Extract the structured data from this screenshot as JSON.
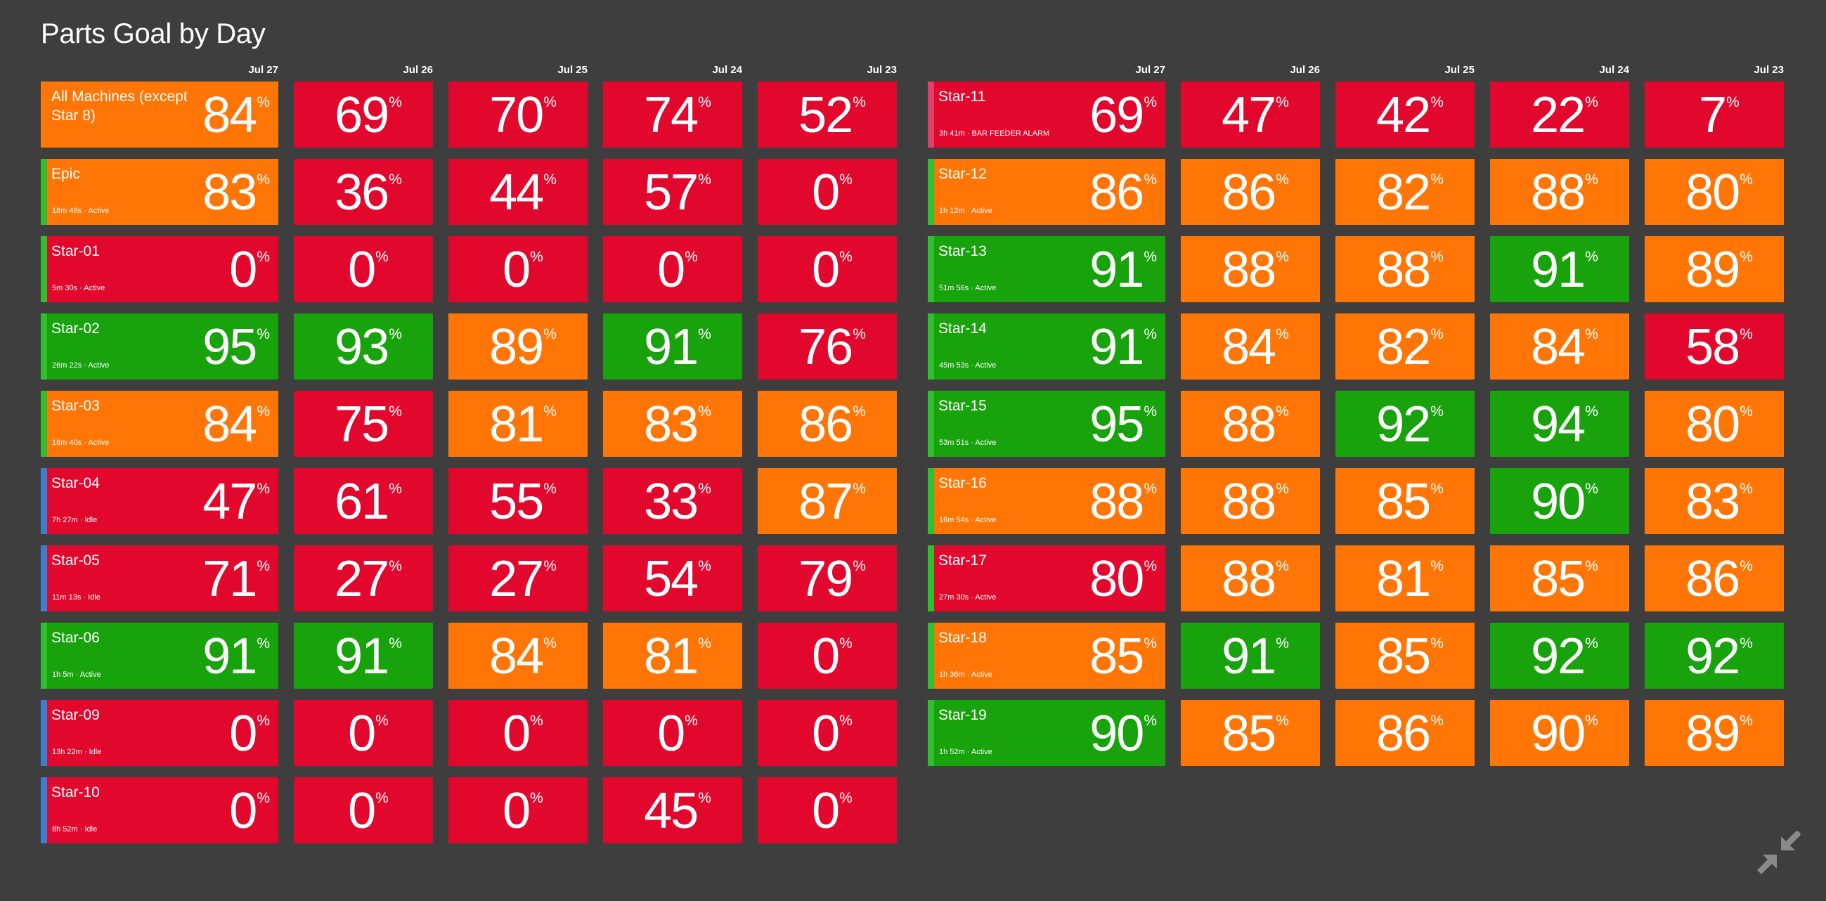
{
  "title": "Parts Goal by Day",
  "colors": {
    "background": "#3e3e3e",
    "red": "#e2082d",
    "orange": "#ff7606",
    "green": "#18a20c",
    "status_active": "#2fbf2f",
    "status_idle": "#3a7fd0",
    "status_alarm": "#e2426a",
    "status_aggregate": "#ff7606"
  },
  "percent_symbol": "%",
  "dates": [
    "Jul 27",
    "Jul 26",
    "Jul 25",
    "Jul 24",
    "Jul 23"
  ],
  "left_panel": [
    {
      "name": "All Machines (except Star 8)",
      "status": "",
      "status_type": "aggregate",
      "values": [
        84,
        69,
        70,
        74,
        52
      ],
      "colors": [
        "orange",
        "red",
        "red",
        "red",
        "red"
      ]
    },
    {
      "name": "Epic",
      "status": "18m 46s · Active",
      "status_type": "active",
      "values": [
        83,
        36,
        44,
        57,
        0
      ],
      "colors": [
        "orange",
        "red",
        "red",
        "red",
        "red"
      ]
    },
    {
      "name": "Star-01",
      "status": "5m 30s · Active",
      "status_type": "active",
      "values": [
        0,
        0,
        0,
        0,
        0
      ],
      "colors": [
        "red",
        "red",
        "red",
        "red",
        "red"
      ]
    },
    {
      "name": "Star-02",
      "status": "26m 22s · Active",
      "status_type": "active",
      "values": [
        95,
        93,
        89,
        91,
        76
      ],
      "colors": [
        "green",
        "green",
        "orange",
        "green",
        "red"
      ]
    },
    {
      "name": "Star-03",
      "status": "16m 40s · Active",
      "status_type": "active",
      "values": [
        84,
        75,
        81,
        83,
        86
      ],
      "colors": [
        "orange",
        "red",
        "orange",
        "orange",
        "orange"
      ]
    },
    {
      "name": "Star-04",
      "status": "7h 27m · Idle",
      "status_type": "idle",
      "values": [
        47,
        61,
        55,
        33,
        87
      ],
      "colors": [
        "red",
        "red",
        "red",
        "red",
        "orange"
      ]
    },
    {
      "name": "Star-05",
      "status": "11m 13s · Idle",
      "status_type": "idle",
      "values": [
        71,
        27,
        27,
        54,
        79
      ],
      "colors": [
        "red",
        "red",
        "red",
        "red",
        "red"
      ]
    },
    {
      "name": "Star-06",
      "status": "1h 5m · Active",
      "status_type": "active",
      "values": [
        91,
        91,
        84,
        81,
        0
      ],
      "colors": [
        "green",
        "green",
        "orange",
        "orange",
        "red"
      ]
    },
    {
      "name": "Star-09",
      "status": "13h 22m · Idle",
      "status_type": "idle",
      "values": [
        0,
        0,
        0,
        0,
        0
      ],
      "colors": [
        "red",
        "red",
        "red",
        "red",
        "red"
      ]
    },
    {
      "name": "Star-10",
      "status": "8h 52m · Idle",
      "status_type": "idle",
      "values": [
        0,
        0,
        0,
        45,
        0
      ],
      "colors": [
        "red",
        "red",
        "red",
        "red",
        "red"
      ]
    }
  ],
  "right_panel": [
    {
      "name": "Star-11",
      "status": "3h 41m · BAR FEEDER ALARM",
      "status_type": "alarm",
      "values": [
        69,
        47,
        42,
        22,
        7
      ],
      "colors": [
        "red",
        "red",
        "red",
        "red",
        "red"
      ]
    },
    {
      "name": "Star-12",
      "status": "1h 12m · Active",
      "status_type": "active",
      "values": [
        86,
        86,
        82,
        88,
        80
      ],
      "colors": [
        "orange",
        "orange",
        "orange",
        "orange",
        "orange"
      ]
    },
    {
      "name": "Star-13",
      "status": "51m 56s · Active",
      "status_type": "active",
      "values": [
        91,
        88,
        88,
        91,
        89
      ],
      "colors": [
        "green",
        "orange",
        "orange",
        "green",
        "orange"
      ]
    },
    {
      "name": "Star-14",
      "status": "45m 53s · Active",
      "status_type": "active",
      "values": [
        91,
        84,
        82,
        84,
        58
      ],
      "colors": [
        "green",
        "orange",
        "orange",
        "orange",
        "red"
      ]
    },
    {
      "name": "Star-15",
      "status": "53m 51s · Active",
      "status_type": "active",
      "values": [
        95,
        88,
        92,
        94,
        80
      ],
      "colors": [
        "green",
        "orange",
        "green",
        "green",
        "orange"
      ]
    },
    {
      "name": "Star-16",
      "status": "16m 54s · Active",
      "status_type": "active",
      "values": [
        88,
        88,
        85,
        90,
        83
      ],
      "colors": [
        "orange",
        "orange",
        "orange",
        "green",
        "orange"
      ]
    },
    {
      "name": "Star-17",
      "status": "27m 30s · Active",
      "status_type": "active",
      "values": [
        80,
        88,
        81,
        85,
        86
      ],
      "colors": [
        "red",
        "orange",
        "orange",
        "orange",
        "orange"
      ]
    },
    {
      "name": "Star-18",
      "status": "1h 36m · Active",
      "status_type": "active",
      "values": [
        85,
        91,
        85,
        92,
        92
      ],
      "colors": [
        "orange",
        "green",
        "orange",
        "green",
        "green"
      ]
    },
    {
      "name": "Star-19",
      "status": "1h 52m · Active",
      "status_type": "active",
      "values": [
        90,
        85,
        86,
        90,
        89
      ],
      "colors": [
        "green",
        "orange",
        "orange",
        "orange",
        "orange"
      ]
    }
  ],
  "exit_fullscreen_icon": "compress-arrows-icon"
}
